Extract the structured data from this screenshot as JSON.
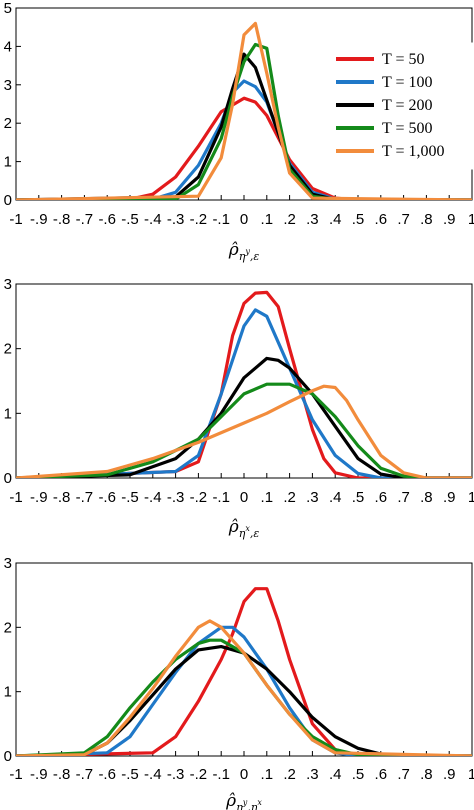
{
  "colors": {
    "T50": "#e31a1c",
    "T100": "#1f78c8",
    "T200": "#000000",
    "T500": "#148a1a",
    "T1000": "#f28c3c"
  },
  "chart_data": [
    {
      "type": "line",
      "xlabel": "ρ̂ ηʸ,ε",
      "xlabel_parts": {
        "base": "ρ̂",
        "s1": "η",
        "sup": "y",
        "s2": ",ε"
      },
      "xlim": [
        -1,
        1
      ],
      "ylim": [
        0,
        5
      ],
      "xticks": [
        "-1",
        "-.9",
        "-.8",
        "-.7",
        "-.6",
        "-.5",
        "-.4",
        "-.3",
        "-.2",
        "-.1",
        "0",
        ".1",
        ".2",
        ".3",
        ".4",
        ".5",
        ".6",
        ".7",
        ".8",
        ".9",
        "1"
      ],
      "yticks": [
        "0",
        "1",
        "2",
        "3",
        "4",
        "5"
      ],
      "grid": false,
      "legend": {
        "placement": "top-right",
        "entries": [
          "T = 50",
          "T = 100",
          "T = 200",
          "T = 500",
          "T = 1,000"
        ]
      },
      "series": [
        {
          "name": "T = 50",
          "color": "#e31a1c",
          "x": [
            -1,
            -0.5,
            -0.4,
            -0.3,
            -0.2,
            -0.1,
            0,
            0.05,
            0.1,
            0.2,
            0.3,
            0.4,
            0.5,
            1
          ],
          "y": [
            0,
            0.02,
            0.15,
            0.6,
            1.4,
            2.3,
            2.65,
            2.55,
            2.2,
            1.05,
            0.3,
            0.05,
            0,
            0
          ]
        },
        {
          "name": "T = 100",
          "color": "#1f78c8",
          "x": [
            -1,
            -0.4,
            -0.3,
            -0.2,
            -0.1,
            -0.05,
            0,
            0.05,
            0.1,
            0.2,
            0.3,
            0.4,
            1
          ],
          "y": [
            0,
            0.02,
            0.2,
            0.9,
            2.0,
            2.8,
            3.1,
            2.95,
            2.55,
            0.95,
            0.2,
            0.02,
            0
          ]
        },
        {
          "name": "T = 200",
          "color": "#000000",
          "x": [
            -1,
            -0.3,
            -0.2,
            -0.1,
            -0.05,
            0,
            0.05,
            0.1,
            0.2,
            0.3,
            0.4,
            1
          ],
          "y": [
            0,
            0.08,
            0.6,
            1.9,
            2.9,
            3.8,
            3.45,
            2.6,
            0.9,
            0.15,
            0.01,
            0
          ]
        },
        {
          "name": "T = 500",
          "color": "#148a1a",
          "x": [
            -1,
            -0.3,
            -0.2,
            -0.1,
            -0.05,
            0,
            0.05,
            0.1,
            0.15,
            0.2,
            0.3,
            0.4,
            1
          ],
          "y": [
            0,
            0.02,
            0.4,
            1.6,
            2.7,
            3.6,
            4.05,
            3.95,
            2.2,
            0.8,
            0.1,
            0.01,
            0
          ]
        },
        {
          "name": "T = 1,000",
          "color": "#f28c3c",
          "x": [
            -1,
            -0.2,
            -0.1,
            -0.05,
            0,
            0.05,
            0.1,
            0.15,
            0.2,
            0.3,
            1
          ],
          "y": [
            0,
            0.1,
            1.1,
            2.5,
            4.3,
            4.6,
            3.3,
            1.9,
            0.7,
            0.05,
            0
          ]
        }
      ]
    },
    {
      "type": "line",
      "xlabel": "ρ̂ ηˣ,ε",
      "xlabel_parts": {
        "base": "ρ̂",
        "s1": "η",
        "sup": "x",
        "s2": ",ε"
      },
      "xlim": [
        -1,
        1
      ],
      "ylim": [
        0,
        3
      ],
      "xticks": [
        "-1",
        "-.9",
        "-.8",
        "-.7",
        "-.6",
        "-.5",
        "-.4",
        "-.3",
        "-.2",
        "-.1",
        "0",
        ".1",
        ".2",
        ".3",
        ".4",
        ".5",
        ".6",
        ".7",
        ".8",
        ".9",
        "1"
      ],
      "yticks": [
        "0",
        "1",
        "2",
        "3"
      ],
      "grid": false,
      "series": [
        {
          "name": "T = 50",
          "color": "#e31a1c",
          "x": [
            -1,
            -0.3,
            -0.2,
            -0.1,
            -0.05,
            0,
            0.05,
            0.1,
            0.15,
            0.2,
            0.3,
            0.35,
            0.4,
            0.5,
            1
          ],
          "y": [
            0,
            0.1,
            0.25,
            1.3,
            2.2,
            2.7,
            2.86,
            2.87,
            2.65,
            2.0,
            0.75,
            0.3,
            0.08,
            0,
            0
          ]
        },
        {
          "name": "T = 100",
          "color": "#1f78c8",
          "x": [
            -1,
            -0.3,
            -0.2,
            -0.1,
            0,
            0.05,
            0.1,
            0.2,
            0.3,
            0.4,
            0.5,
            0.6,
            1
          ],
          "y": [
            0,
            0.1,
            0.35,
            1.3,
            2.35,
            2.6,
            2.5,
            1.7,
            0.9,
            0.35,
            0.07,
            0,
            0
          ]
        },
        {
          "name": "T = 200",
          "color": "#000000",
          "x": [
            -1,
            -0.5,
            -0.3,
            -0.2,
            -0.1,
            0,
            0.1,
            0.15,
            0.2,
            0.3,
            0.4,
            0.5,
            0.6,
            0.7,
            1
          ],
          "y": [
            0,
            0.05,
            0.3,
            0.6,
            1.0,
            1.55,
            1.85,
            1.82,
            1.7,
            1.3,
            0.8,
            0.3,
            0.06,
            0,
            0
          ]
        },
        {
          "name": "T = 500",
          "color": "#148a1a",
          "x": [
            -1,
            -0.6,
            -0.4,
            -0.2,
            -0.1,
            0,
            0.1,
            0.2,
            0.3,
            0.4,
            0.5,
            0.6,
            0.7,
            0.8,
            1
          ],
          "y": [
            0,
            0.05,
            0.25,
            0.6,
            0.95,
            1.3,
            1.45,
            1.45,
            1.3,
            0.95,
            0.5,
            0.15,
            0.03,
            0,
            0
          ]
        },
        {
          "name": "T = 1,000",
          "color": "#f28c3c",
          "x": [
            -1,
            -0.6,
            -0.4,
            -0.2,
            0,
            0.1,
            0.2,
            0.3,
            0.35,
            0.4,
            0.45,
            0.5,
            0.6,
            0.7,
            0.8,
            1
          ],
          "y": [
            0,
            0.1,
            0.3,
            0.55,
            0.85,
            1.0,
            1.18,
            1.35,
            1.42,
            1.4,
            1.2,
            0.9,
            0.35,
            0.08,
            0,
            0
          ]
        }
      ]
    },
    {
      "type": "line",
      "xlabel": "ρ̂ ηʸ,ηˣ",
      "xlabel_parts": {
        "base": "ρ̂",
        "s1": "η",
        "sup": "y",
        "s2": ",η",
        "sup2": "x"
      },
      "xlim": [
        -1,
        1
      ],
      "ylim": [
        0,
        3
      ],
      "xticks": [
        "-1",
        "-.9",
        "-.8",
        "-.7",
        "-.6",
        "-.5",
        "-.4",
        "-.3",
        "-.2",
        "-.1",
        "0",
        ".1",
        ".2",
        ".3",
        ".4",
        ".5",
        ".6",
        ".7",
        ".8",
        ".9",
        "1"
      ],
      "yticks": [
        "0",
        "1",
        "2",
        "3"
      ],
      "grid": false,
      "series": [
        {
          "name": "T = 50",
          "color": "#e31a1c",
          "x": [
            -1,
            -0.4,
            -0.3,
            -0.2,
            -0.1,
            -0.05,
            0,
            0.05,
            0.1,
            0.15,
            0.2,
            0.3,
            0.4,
            0.5,
            1
          ],
          "y": [
            0,
            0.05,
            0.3,
            0.85,
            1.5,
            1.9,
            2.4,
            2.6,
            2.6,
            2.1,
            1.5,
            0.5,
            0.1,
            0,
            0
          ]
        },
        {
          "name": "T = 100",
          "color": "#1f78c8",
          "x": [
            -1,
            -0.6,
            -0.5,
            -0.4,
            -0.3,
            -0.2,
            -0.1,
            -0.05,
            0,
            0.1,
            0.2,
            0.3,
            0.4,
            0.5,
            1
          ],
          "y": [
            0,
            0.05,
            0.3,
            0.8,
            1.3,
            1.75,
            2.0,
            2.0,
            1.85,
            1.35,
            0.75,
            0.25,
            0.05,
            0,
            0
          ]
        },
        {
          "name": "T = 200",
          "color": "#000000",
          "x": [
            -1,
            -0.7,
            -0.6,
            -0.5,
            -0.4,
            -0.3,
            -0.2,
            -0.1,
            0,
            0.1,
            0.2,
            0.3,
            0.4,
            0.5,
            0.6,
            0.7,
            1
          ],
          "y": [
            0,
            0.02,
            0.2,
            0.55,
            0.95,
            1.35,
            1.65,
            1.7,
            1.6,
            1.35,
            1.0,
            0.6,
            0.3,
            0.12,
            0.03,
            0,
            0
          ]
        },
        {
          "name": "T = 500",
          "color": "#148a1a",
          "x": [
            -1,
            -0.7,
            -0.6,
            -0.5,
            -0.4,
            -0.3,
            -0.2,
            -0.15,
            -0.1,
            0,
            0.1,
            0.2,
            0.3,
            0.4,
            0.5,
            0.6,
            1
          ],
          "y": [
            0,
            0.05,
            0.3,
            0.75,
            1.15,
            1.5,
            1.75,
            1.8,
            1.8,
            1.6,
            1.1,
            0.65,
            0.3,
            0.1,
            0.02,
            0,
            0
          ]
        },
        {
          "name": "T = 1,000",
          "color": "#f28c3c",
          "x": [
            -1,
            -0.7,
            -0.6,
            -0.5,
            -0.4,
            -0.3,
            -0.2,
            -0.15,
            -0.1,
            0,
            0.1,
            0.2,
            0.3,
            0.4,
            1
          ],
          "y": [
            0,
            0.02,
            0.2,
            0.6,
            1.05,
            1.55,
            2.0,
            2.1,
            2.0,
            1.6,
            1.1,
            0.65,
            0.25,
            0.05,
            0
          ]
        }
      ]
    }
  ]
}
